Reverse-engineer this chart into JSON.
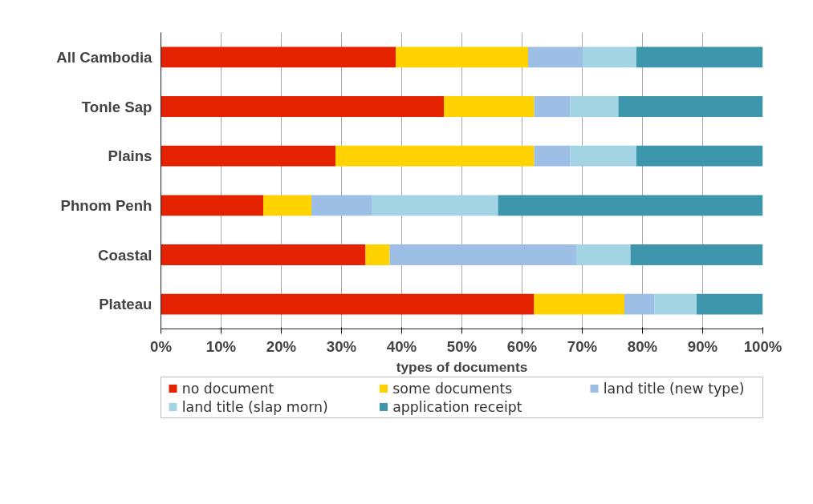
{
  "chart_data": {
    "type": "bar",
    "orientation": "horizontal",
    "stacked": true,
    "categories": [
      "All Cambodia",
      "Tonle Sap",
      "Plains",
      "Phnom Penh",
      "Coastal",
      "Plateau"
    ],
    "series": [
      {
        "name": "no document",
        "color": "#e52200",
        "values": [
          39,
          47,
          29,
          17,
          34,
          62
        ]
      },
      {
        "name": "some documents",
        "color": "#ffd200",
        "values": [
          22,
          15,
          33,
          8,
          4,
          15
        ]
      },
      {
        "name": "land title (new type)",
        "color": "#9dbfe6",
        "values": [
          9,
          6,
          6,
          10,
          31,
          5
        ]
      },
      {
        "name": "land title (slap morn)",
        "color": "#a3d4e3",
        "values": [
          9,
          8,
          11,
          21,
          9,
          7
        ]
      },
      {
        "name": "application receipt",
        "color": "#3d96ab",
        "values": [
          21,
          24,
          21,
          44,
          22,
          11
        ]
      }
    ],
    "xlabel": "types of documents",
    "xlim": [
      0,
      100
    ],
    "xticks": [
      {
        "value": 0,
        "label": "0%"
      },
      {
        "value": 10,
        "label": "10%"
      },
      {
        "value": 20,
        "label": "20%"
      },
      {
        "value": 30,
        "label": "30%"
      },
      {
        "value": 40,
        "label": "40%"
      },
      {
        "value": 50,
        "label": "50%"
      },
      {
        "value": 60,
        "label": "60%"
      },
      {
        "value": 70,
        "label": "70%"
      },
      {
        "value": 80,
        "label": "80%"
      },
      {
        "value": 90,
        "label": "90%"
      },
      {
        "value": 100,
        "label": "100%"
      }
    ],
    "grid": "x",
    "legend": "bottom"
  }
}
